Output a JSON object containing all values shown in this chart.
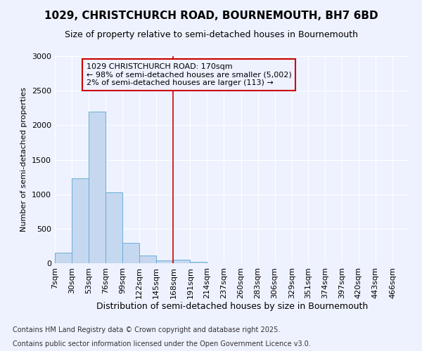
{
  "title_line1": "1029, CHRISTCHURCH ROAD, BOURNEMOUTH, BH7 6BD",
  "title_line2": "Size of property relative to semi-detached houses in Bournemouth",
  "xlabel": "Distribution of semi-detached houses by size in Bournemouth",
  "ylabel": "Number of semi-detached properties",
  "footnote1": "Contains HM Land Registry data © Crown copyright and database right 2025.",
  "footnote2": "Contains public sector information licensed under the Open Government Licence v3.0.",
  "annotation_title": "1029 CHRISTCHURCH ROAD: 170sqm",
  "annotation_line2": "← 98% of semi-detached houses are smaller (5,002)",
  "annotation_line3": "2% of semi-detached houses are larger (113) →",
  "bar_labels": [
    "7sqm",
    "30sqm",
    "53sqm",
    "76sqm",
    "99sqm",
    "122sqm",
    "145sqm",
    "168sqm",
    "191sqm",
    "214sqm",
    "237sqm",
    "260sqm",
    "283sqm",
    "306sqm",
    "329sqm",
    "351sqm",
    "374sqm",
    "397sqm",
    "420sqm",
    "443sqm",
    "466sqm"
  ],
  "bar_edges": [
    7,
    30,
    53,
    76,
    99,
    122,
    145,
    168,
    191,
    214,
    237,
    260,
    283,
    306,
    329,
    351,
    374,
    397,
    420,
    443,
    466
  ],
  "bar_heights": [
    150,
    1230,
    2200,
    1030,
    300,
    110,
    45,
    50,
    25,
    5,
    0,
    0,
    0,
    0,
    0,
    0,
    0,
    0,
    0,
    0,
    0
  ],
  "bar_color": "#c5d8f0",
  "bar_edgecolor": "#6aaed6",
  "vline_color": "#cc0000",
  "vline_x": 168,
  "background_color": "#eef2ff",
  "grid_color": "#ffffff",
  "ylim": [
    0,
    3000
  ],
  "yticks": [
    0,
    500,
    1000,
    1500,
    2000,
    2500,
    3000
  ],
  "title1_fontsize": 11,
  "title2_fontsize": 9,
  "xlabel_fontsize": 9,
  "ylabel_fontsize": 8,
  "tick_fontsize": 8,
  "annotation_fontsize": 8,
  "footnote_fontsize": 7
}
